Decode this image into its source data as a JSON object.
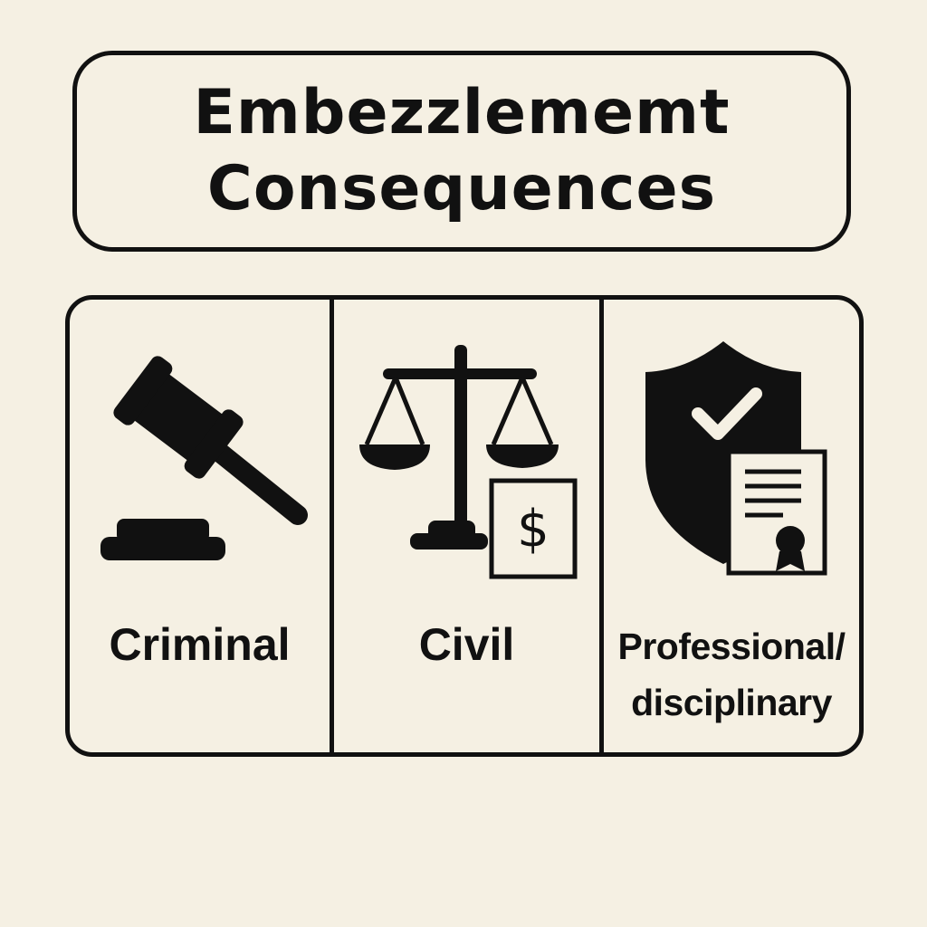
{
  "title": {
    "line1": "Embezzlememt",
    "line2": "Consequences"
  },
  "panels": [
    {
      "label": "Criminal",
      "icon": "gavel-icon"
    },
    {
      "label": "Civil",
      "icon": "scales-of-justice-icon",
      "badge": "$"
    },
    {
      "label_line1": "Professional/",
      "label_line2": "disciplinary",
      "icon": "shield-certificate-icon"
    }
  ],
  "colors": {
    "background": "#f5f0e3",
    "ink": "#111111"
  }
}
